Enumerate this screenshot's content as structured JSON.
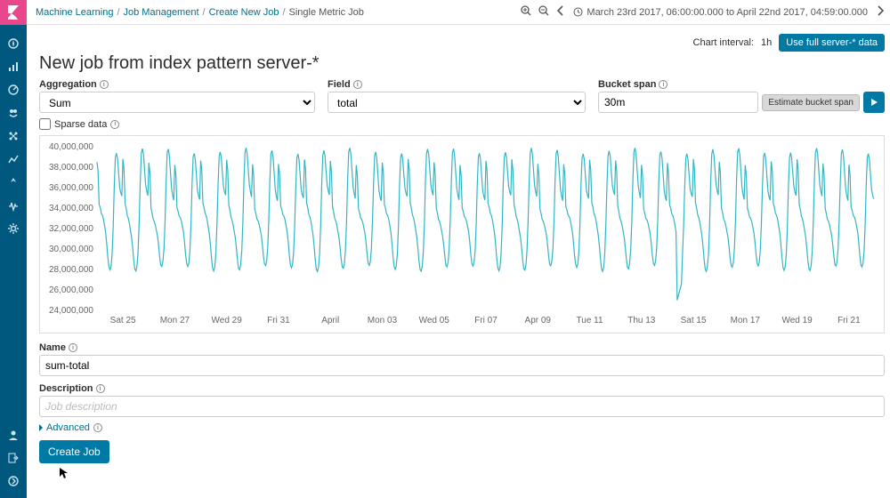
{
  "breadcrumbs": [
    {
      "label": "Machine Learning",
      "current": false
    },
    {
      "label": "Job Management",
      "current": false
    },
    {
      "label": "Create New Job",
      "current": false
    },
    {
      "label": "Single Metric Job",
      "current": true
    }
  ],
  "time_range": "March 23rd 2017, 06:00:00.000 to April 22nd 2017, 04:59:00.000",
  "chart_interval_label": "Chart interval:",
  "chart_interval_value": "1h",
  "use_full_data_btn": "Use full server-* data",
  "title": "New job from index pattern server-*",
  "labels": {
    "aggregation": "Aggregation",
    "field": "Field",
    "bucket_span": "Bucket span",
    "sparse_data": "Sparse data",
    "name": "Name",
    "description": "Description",
    "advanced": "Advanced",
    "estimate": "Estimate bucket span",
    "create_job": "Create Job"
  },
  "form": {
    "aggregation_value": "Sum",
    "field_value": "total",
    "bucket_span_value": "30m",
    "sparse_checked": false,
    "name_value": "sum-total",
    "description_placeholder": "Job description"
  },
  "chart": {
    "type": "line",
    "line_color": "#32b6c4",
    "line_width": 1.2,
    "background_color": "#ffffff",
    "border_color": "#dddddd",
    "axis_text_color": "#666666",
    "axis_fontsize": 10,
    "ylim": [
      24000000,
      40000000
    ],
    "ytick_step": 2000000,
    "ytick_labels": [
      "24,000,000",
      "26,000,000",
      "28,000,000",
      "30,000,000",
      "32,000,000",
      "34,000,000",
      "36,000,000",
      "38,000,000",
      "40,000,000"
    ],
    "xtick_labels": [
      "Sat 25",
      "Mon 27",
      "Wed 29",
      "Fri 31",
      "April",
      "Mon 03",
      "Wed 05",
      "Fri 07",
      "Apr 09",
      "Tue 11",
      "Thu 13",
      "Sat 15",
      "Mon 17",
      "Wed 19",
      "Fri 21"
    ],
    "n_days": 30,
    "daily_pattern_values": [
      38.5,
      37.5,
      34.2,
      33.8,
      33.2,
      33.0,
      32.6,
      32.0,
      31.4,
      30.4,
      29.2,
      28.3,
      28.1,
      28.5,
      29.8,
      32.5,
      36.5,
      39.2,
      39.6,
      39.0,
      37.5,
      36.0,
      35.4,
      35.0
    ],
    "daily_pattern_scale": 1000000,
    "anomaly_day_index": 22,
    "anomaly_min": 25000000
  },
  "sidebar_icons": [
    "discover-icon",
    "visualize-icon",
    "dashboard-icon",
    "timelion-icon",
    "ml-icon",
    "graph-icon",
    "apm-icon",
    "monitoring-icon",
    "management-icon"
  ],
  "sidebar_bottom_icons": [
    "user-icon",
    "logout-icon",
    "collapse-icon"
  ]
}
